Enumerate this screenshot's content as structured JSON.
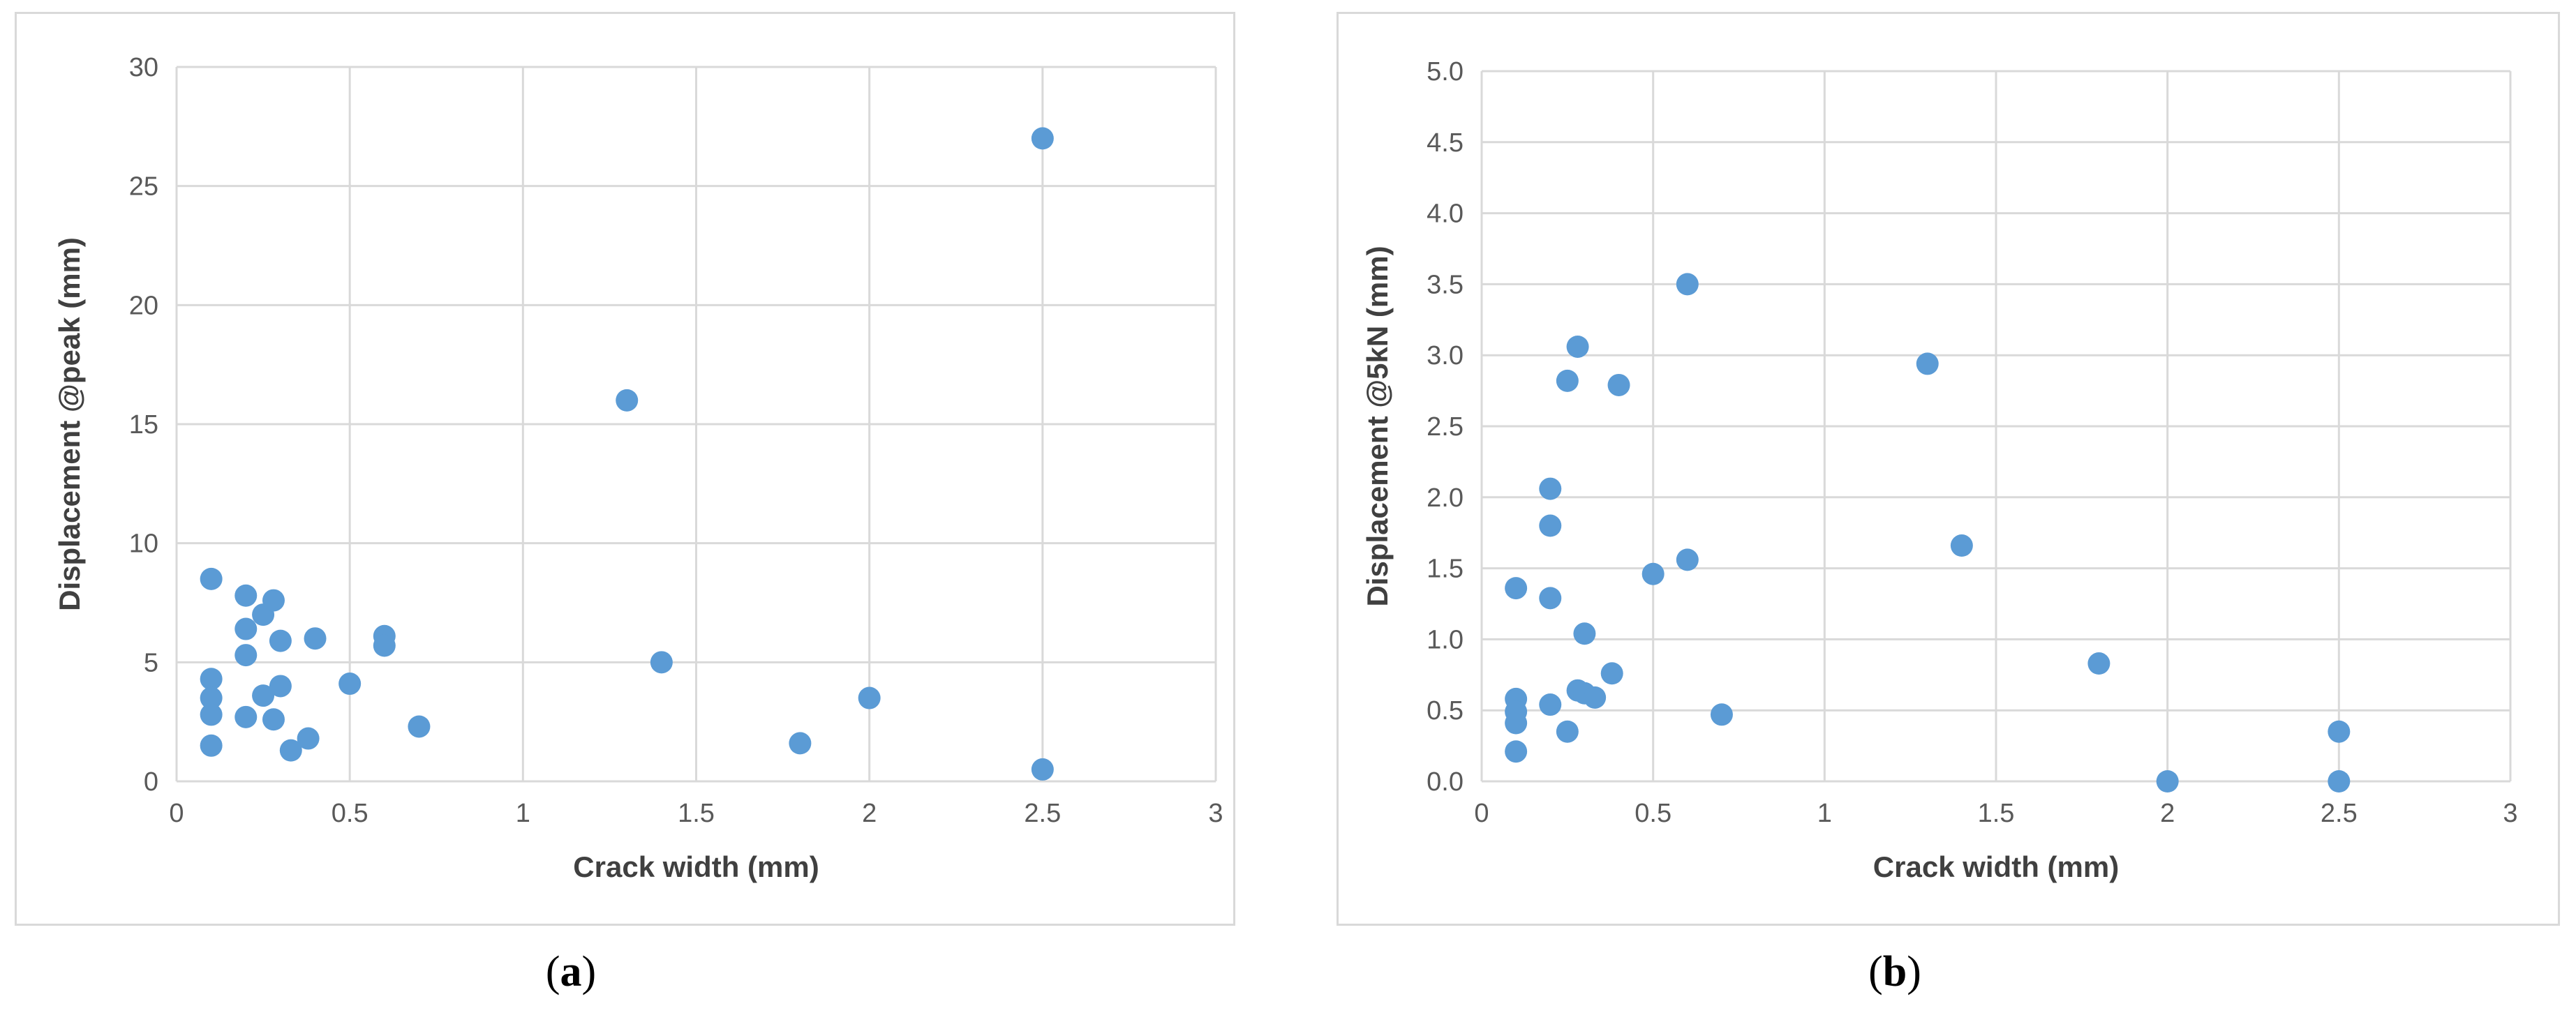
{
  "chart_data": [
    {
      "type": "scatter",
      "panel_label": "a",
      "title": "",
      "xlabel": "Crack width (mm)",
      "ylabel": "Displacement @peak (mm)",
      "xlim": [
        0,
        3
      ],
      "ylim": [
        0,
        30
      ],
      "xticks": [
        0,
        0.5,
        1,
        1.5,
        2,
        2.5,
        3
      ],
      "yticks": [
        0,
        5,
        10,
        15,
        20,
        25,
        30
      ],
      "xtick_labels": [
        "0",
        "0.5",
        "1",
        "1.5",
        "2",
        "2.5",
        "3"
      ],
      "ytick_labels": [
        "0",
        "5",
        "10",
        "15",
        "20",
        "25",
        "30"
      ],
      "grid": true,
      "marker_color": "#5b9bd5",
      "series": [
        {
          "name": "Displacement @peak",
          "x": [
            0.1,
            0.1,
            0.1,
            0.1,
            0.1,
            0.2,
            0.2,
            0.2,
            0.2,
            0.25,
            0.25,
            0.28,
            0.28,
            0.3,
            0.3,
            0.33,
            0.38,
            0.4,
            0.5,
            0.6,
            0.6,
            0.7,
            1.3,
            1.4,
            1.8,
            2.0,
            2.5,
            2.5
          ],
          "y": [
            8.5,
            4.3,
            3.5,
            2.8,
            1.5,
            7.8,
            6.4,
            5.3,
            2.7,
            7.0,
            3.6,
            7.6,
            2.6,
            5.9,
            4.0,
            1.3,
            1.8,
            6.0,
            4.1,
            6.1,
            5.7,
            2.3,
            16.0,
            5.0,
            1.6,
            3.5,
            27.0,
            0.5
          ]
        }
      ]
    },
    {
      "type": "scatter",
      "panel_label": "b",
      "title": "",
      "xlabel": "Crack width (mm)",
      "ylabel": "Displacement @5kN (mm)",
      "xlim": [
        0,
        3
      ],
      "ylim": [
        0,
        5
      ],
      "xticks": [
        0,
        0.5,
        1,
        1.5,
        2,
        2.5,
        3
      ],
      "yticks": [
        0,
        0.5,
        1,
        1.5,
        2,
        2.5,
        3,
        3.5,
        4,
        4.5,
        5
      ],
      "xtick_labels": [
        "0",
        "0.5",
        "1",
        "1.5",
        "2",
        "2.5",
        "3"
      ],
      "ytick_labels": [
        "0.0",
        "0.5",
        "1.0",
        "1.5",
        "2.0",
        "2.5",
        "3.0",
        "3.5",
        "4.0",
        "4.5",
        "5.0"
      ],
      "grid": true,
      "marker_color": "#5b9bd5",
      "series": [
        {
          "name": "Displacement @5kN",
          "x": [
            0.1,
            0.1,
            0.1,
            0.1,
            0.1,
            0.2,
            0.2,
            0.2,
            0.2,
            0.25,
            0.25,
            0.28,
            0.28,
            0.3,
            0.3,
            0.33,
            0.38,
            0.4,
            0.5,
            0.6,
            0.6,
            0.7,
            1.3,
            1.4,
            1.8,
            2.0,
            2.5,
            2.5
          ],
          "y": [
            1.36,
            0.58,
            0.49,
            0.41,
            0.21,
            2.06,
            1.8,
            1.29,
            0.54,
            2.82,
            0.35,
            3.06,
            0.64,
            1.04,
            0.62,
            0.59,
            0.76,
            2.79,
            1.46,
            3.5,
            1.56,
            0.47,
            2.94,
            1.66,
            0.83,
            0.0,
            0.35,
            0.0
          ]
        }
      ]
    }
  ]
}
